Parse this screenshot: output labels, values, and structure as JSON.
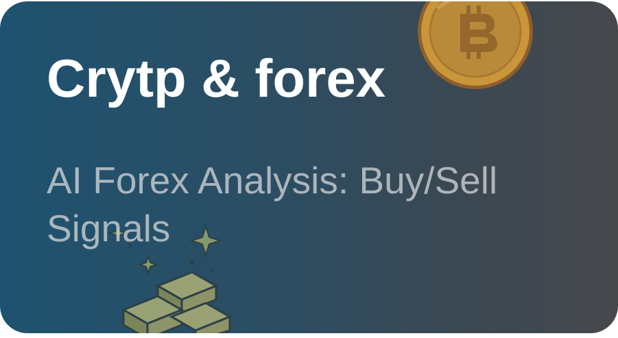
{
  "card": {
    "title": "Crytp & forex",
    "subtitle": "AI Forex Analysis: Buy/Sell Signals",
    "icons": [
      "bitcoin-coin-icon",
      "gold-bars-icon",
      "sparkle-icon"
    ]
  },
  "colors": {
    "gradient_start": "#1e5270",
    "gradient_end": "#46484c",
    "title": "#ffffff",
    "subtitle": "#cdd0d2",
    "coin": "#c9963a",
    "gold_bars": "#b8a25a"
  }
}
